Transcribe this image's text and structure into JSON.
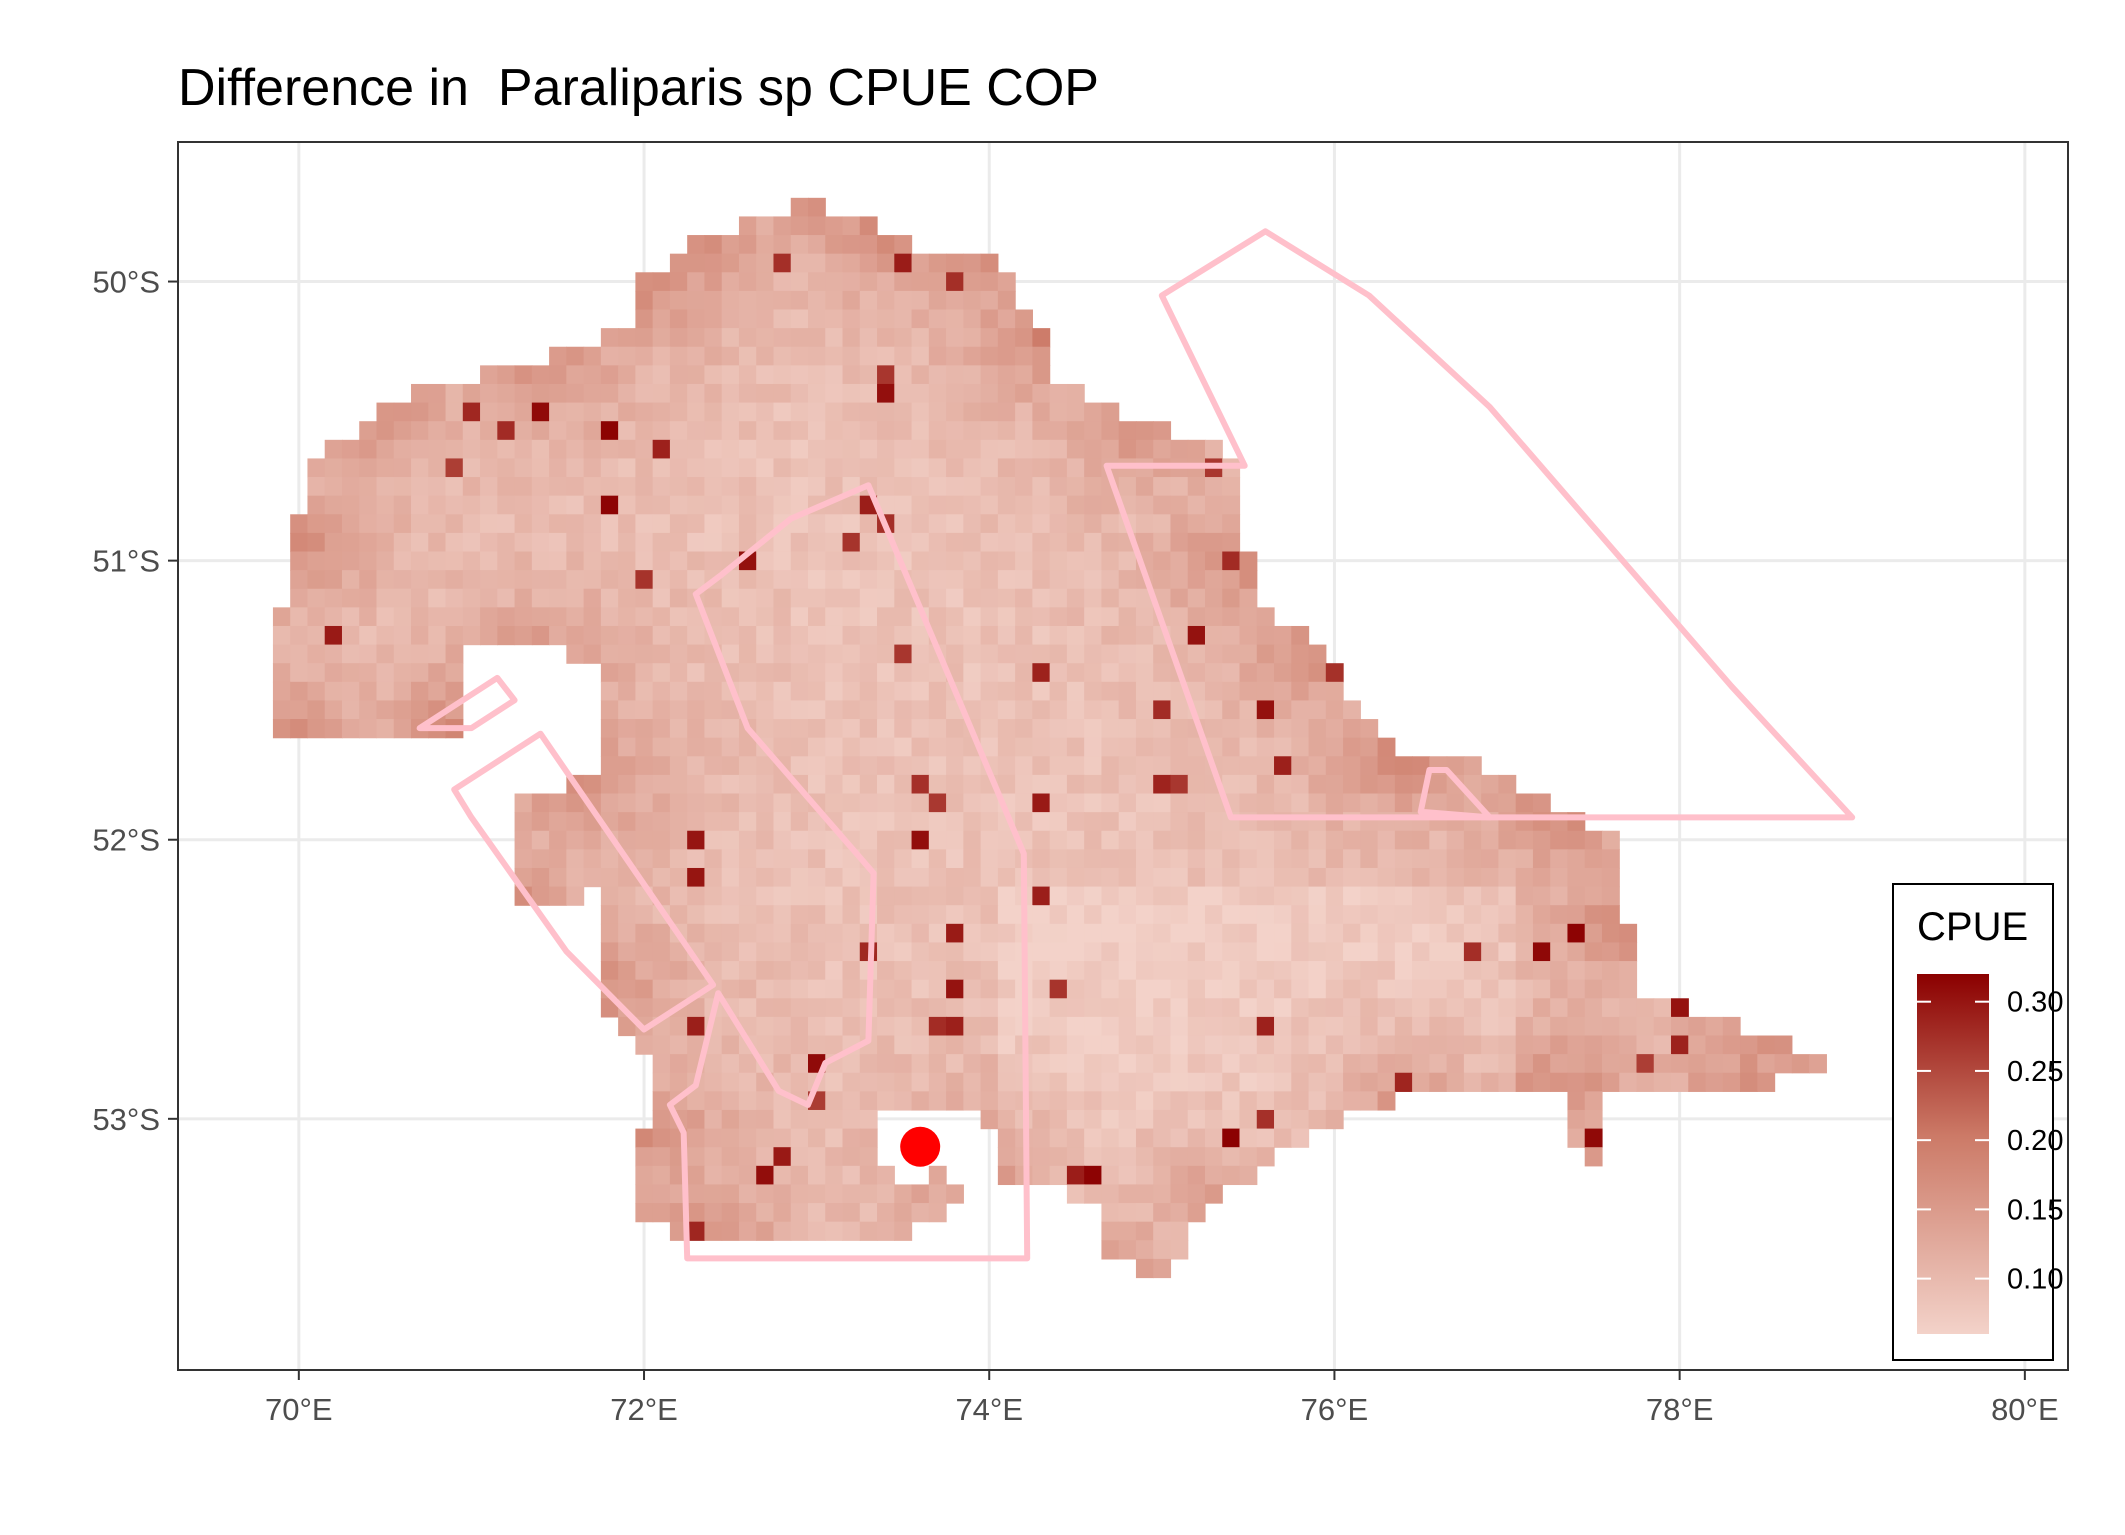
{
  "title": "Difference in  Paraliparis sp CPUE COP",
  "chart_data": {
    "type": "heatmap",
    "title": "Difference in  Paraliparis sp CPUE COP",
    "subject": "Paraliparis sp CPUE",
    "xlabel": "",
    "ylabel": "",
    "x_ticks": [
      {
        "value": 70,
        "label": "70°E"
      },
      {
        "value": 72,
        "label": "72°E"
      },
      {
        "value": 74,
        "label": "74°E"
      },
      {
        "value": 76,
        "label": "76°E"
      },
      {
        "value": 78,
        "label": "78°E"
      },
      {
        "value": 80,
        "label": "80°E"
      }
    ],
    "y_ticks": [
      {
        "value": -50,
        "label": "50°S"
      },
      {
        "value": -51,
        "label": "51°S"
      },
      {
        "value": -52,
        "label": "52°S"
      },
      {
        "value": -53,
        "label": "53°S"
      }
    ],
    "xlim": [
      69.3,
      80.25
    ],
    "ylim": [
      -53.9,
      -49.5
    ],
    "grid": true,
    "cell_size_deg": {
      "lon": 0.1,
      "lat": 0.0667
    },
    "value_range": [
      0.06,
      0.32
    ],
    "colors": {
      "low": "#f3d2c9",
      "mid": "#cc7a67",
      "high": "#8b0000",
      "polygon": "#ffc0cb",
      "point": "#ff0000",
      "panel_border": "#333333",
      "grid": "#ebebeb"
    },
    "legend": {
      "title": "CPUE",
      "position": "right-bottom-inside",
      "breaks": [
        {
          "value": 0.3,
          "label": "0.30"
        },
        {
          "value": 0.25,
          "label": "0.25"
        },
        {
          "value": 0.2,
          "label": "0.20"
        },
        {
          "value": 0.15,
          "label": "0.15"
        },
        {
          "value": 0.1,
          "label": "0.10"
        }
      ]
    },
    "point": {
      "lon": 73.6,
      "lat": -53.1,
      "color": "#ff0000"
    },
    "polygons": [
      {
        "name": "northeast-fan",
        "coords": [
          [
            75.0,
            -50.05
          ],
          [
            75.6,
            -49.82
          ],
          [
            76.2,
            -50.05
          ],
          [
            76.9,
            -50.45
          ],
          [
            77.6,
            -50.95
          ],
          [
            78.3,
            -51.45
          ],
          [
            79.0,
            -51.92
          ],
          [
            75.4,
            -51.92
          ],
          [
            74.68,
            -50.66
          ],
          [
            75.48,
            -50.66
          ]
        ]
      },
      {
        "name": "central-north",
        "coords": [
          [
            72.3,
            -51.12
          ],
          [
            72.45,
            -51.05
          ],
          [
            72.85,
            -50.85
          ],
          [
            73.3,
            -50.73
          ],
          [
            74.2,
            -52.05
          ],
          [
            74.22,
            -53.5
          ],
          [
            72.25,
            -53.5
          ],
          [
            72.23,
            -53.05
          ],
          [
            72.15,
            -52.95
          ],
          [
            72.3,
            -52.88
          ],
          [
            72.43,
            -52.55
          ],
          [
            72.78,
            -52.9
          ],
          [
            72.95,
            -52.95
          ],
          [
            73.05,
            -52.8
          ],
          [
            73.3,
            -52.72
          ],
          [
            73.33,
            -52.12
          ],
          [
            72.6,
            -51.6
          ]
        ]
      },
      {
        "name": "west-strip",
        "coords": [
          [
            70.9,
            -51.82
          ],
          [
            71.4,
            -51.62
          ],
          [
            72.4,
            -52.52
          ],
          [
            72.0,
            -52.68
          ],
          [
            71.55,
            -52.4
          ],
          [
            71.0,
            -51.92
          ]
        ]
      },
      {
        "name": "small-west",
        "coords": [
          [
            70.7,
            -51.6
          ],
          [
            71.15,
            -51.42
          ],
          [
            71.25,
            -51.5
          ],
          [
            71.0,
            -51.6
          ]
        ]
      },
      {
        "name": "east-notch",
        "coords": [
          [
            76.5,
            -51.9
          ],
          [
            76.55,
            -51.75
          ],
          [
            76.65,
            -51.75
          ],
          [
            76.9,
            -51.92
          ]
        ]
      }
    ],
    "regions": [
      {
        "lonRange": [
          69.9,
          76.0
        ],
        "latRange": [
          -51.95,
          -50.0
        ]
      },
      {
        "lonRange": [
          72.0,
          77.3
        ],
        "latRange": [
          -52.0,
          -51.5
        ]
      }
    ]
  }
}
